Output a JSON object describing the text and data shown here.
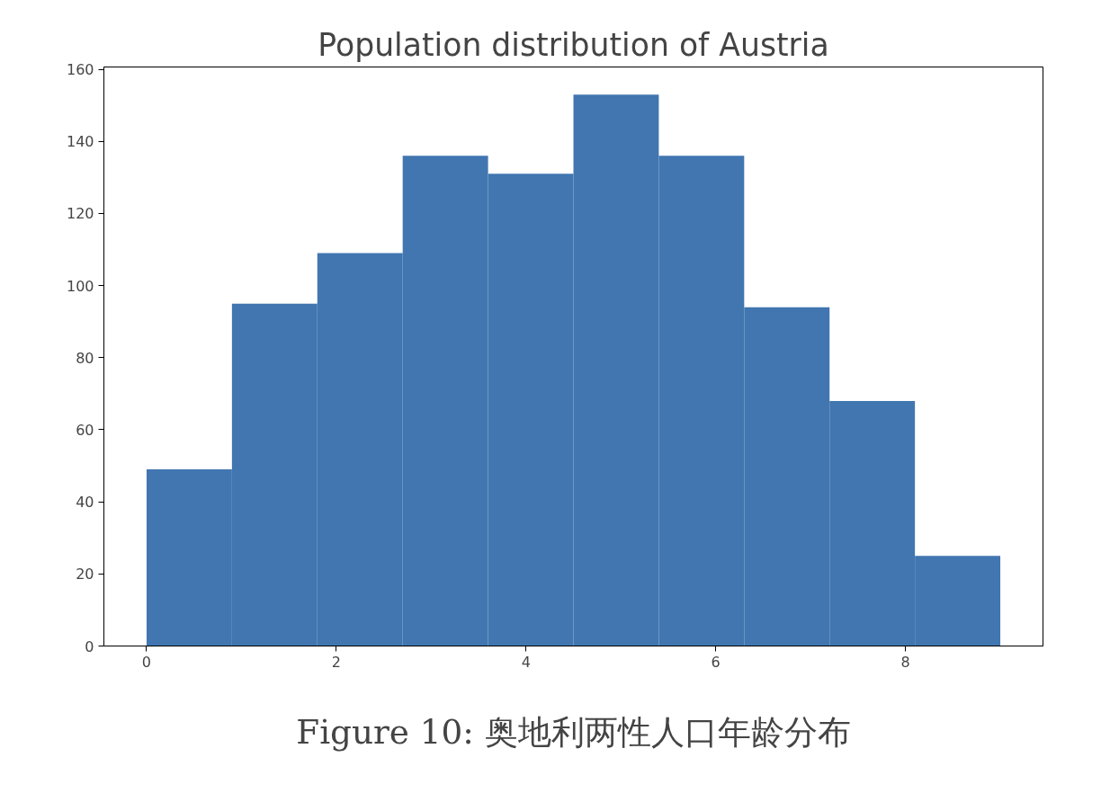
{
  "chart_data": {
    "type": "histogram",
    "title": "Population distribution of Austria",
    "bins": [
      0,
      0.9,
      1.8,
      2.7,
      3.6,
      4.5,
      5.4,
      6.3,
      7.2,
      8.1,
      9
    ],
    "values": [
      49,
      95,
      109,
      136,
      131,
      153,
      136,
      94,
      68,
      25
    ],
    "color": "#4176b0",
    "xlim": [
      -0.45,
      9.45
    ],
    "ylim": [
      0,
      160.65
    ],
    "xticks": [
      0,
      2,
      4,
      6,
      8
    ],
    "yticks": [
      0,
      20,
      40,
      60,
      80,
      100,
      120,
      140,
      160
    ],
    "grid": false,
    "annotations": [
      "Figure 10: 奥地利两性人口年龄分布"
    ]
  }
}
